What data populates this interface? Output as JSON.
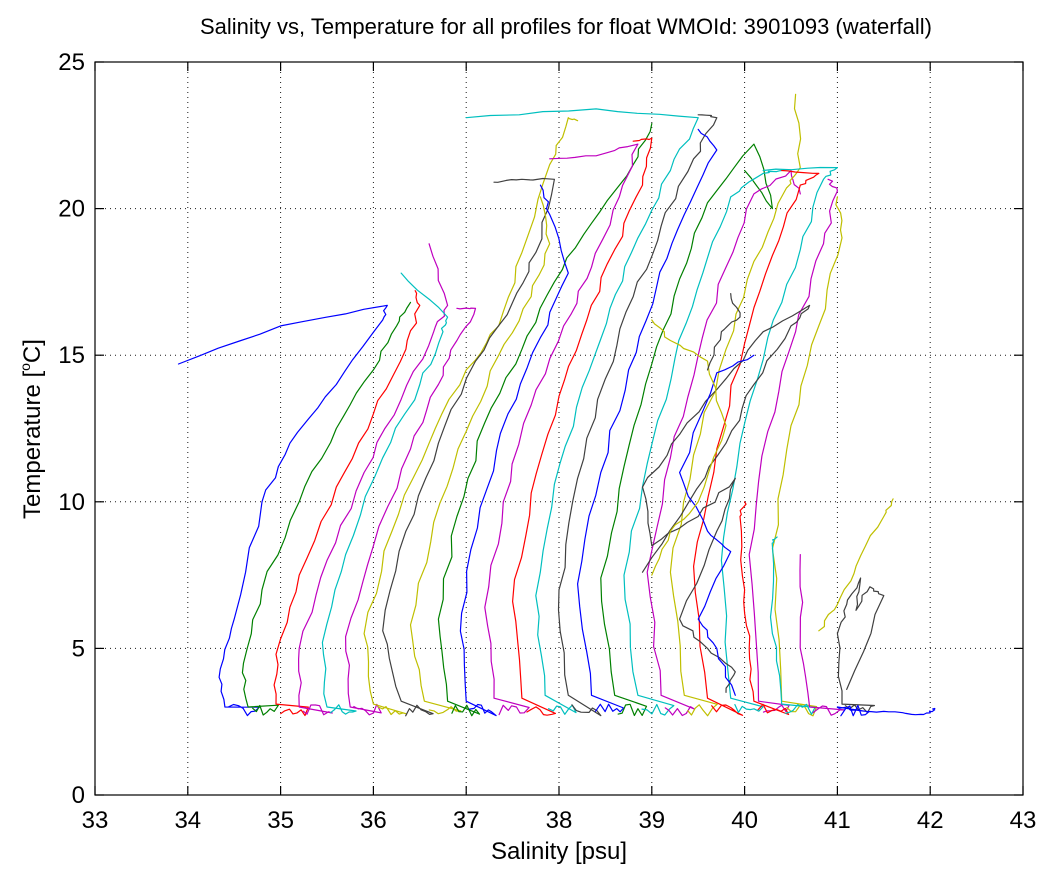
{
  "chart_data": {
    "type": "line",
    "title": "Salinity vs, Temperature for all profiles for float WMOId: 3901093 (waterfall)",
    "xlabel": "Salinity [psu]",
    "ylabel_main": "Temperature [",
    "ylabel_sup": "o",
    "ylabel_end": "C]",
    "xlim": [
      33,
      43
    ],
    "ylim": [
      0,
      25
    ],
    "xticks": [
      33,
      34,
      35,
      36,
      37,
      38,
      39,
      40,
      41,
      42,
      43
    ],
    "yticks": [
      0,
      5,
      10,
      15,
      20,
      25
    ],
    "grid": true,
    "legend": "none",
    "colors": {
      "blue": "#0000ff",
      "green": "#008000",
      "red": "#ff0000",
      "cyan": "#00bfbf",
      "magenta": "#bf00bf",
      "yellow": "#bfbf00",
      "gray": "#404040"
    },
    "series": [
      {
        "color": "blue",
        "points": [
          [
            34.4,
            3.0
          ],
          [
            34.35,
            4.3
          ],
          [
            34.5,
            6.0
          ],
          [
            34.8,
            10.0
          ],
          [
            35.1,
            12.0
          ],
          [
            35.6,
            14.0
          ],
          [
            36.1,
            16.2
          ],
          [
            36.15,
            16.7
          ],
          [
            35.0,
            16.0
          ],
          [
            33.9,
            14.7
          ]
        ]
      },
      {
        "color": "green",
        "points": [
          [
            34.65,
            3.0
          ],
          [
            34.6,
            4.5
          ],
          [
            34.8,
            7.0
          ],
          [
            35.2,
            10.0
          ],
          [
            35.6,
            12.5
          ],
          [
            36.0,
            14.5
          ],
          [
            36.25,
            16.0
          ],
          [
            36.4,
            16.8
          ]
        ]
      },
      {
        "color": "red",
        "points": [
          [
            34.95,
            3.1
          ],
          [
            34.95,
            4.8
          ],
          [
            35.2,
            7.5
          ],
          [
            35.6,
            10.5
          ],
          [
            36.0,
            13.0
          ],
          [
            36.35,
            15.2
          ],
          [
            36.5,
            16.7
          ],
          [
            36.45,
            17.2
          ]
        ]
      },
      {
        "color": "magenta",
        "points": [
          [
            35.2,
            3.0
          ],
          [
            35.2,
            5.0
          ],
          [
            35.5,
            8.0
          ],
          [
            35.9,
            11.0
          ],
          [
            36.3,
            13.5
          ],
          [
            36.65,
            15.8
          ],
          [
            36.8,
            16.7
          ],
          [
            36.6,
            18.8
          ]
        ]
      },
      {
        "color": "cyan",
        "points": [
          [
            35.5,
            3.0
          ],
          [
            35.45,
            5.2
          ],
          [
            35.7,
            8.2
          ],
          [
            36.1,
            11.5
          ],
          [
            36.5,
            14.0
          ],
          [
            36.75,
            15.8
          ],
          [
            36.8,
            16.3
          ],
          [
            36.3,
            17.8
          ]
        ]
      },
      {
        "color": "magenta",
        "points": [
          [
            35.75,
            3.0
          ],
          [
            35.7,
            5.4
          ],
          [
            36.0,
            8.5
          ],
          [
            36.4,
            11.8
          ],
          [
            36.7,
            14.0
          ],
          [
            36.9,
            15.5
          ],
          [
            37.1,
            16.6
          ],
          [
            36.9,
            16.6
          ]
        ]
      },
      {
        "color": "yellow",
        "points": [
          [
            36.0,
            3.1
          ],
          [
            35.9,
            5.5
          ],
          [
            36.2,
            9.0
          ],
          [
            36.6,
            12.0
          ],
          [
            37.0,
            14.5
          ],
          [
            37.35,
            16.0
          ],
          [
            37.6,
            18.5
          ],
          [
            37.9,
            21.5
          ],
          [
            38.1,
            23.1
          ],
          [
            38.2,
            23.0
          ]
        ]
      },
      {
        "color": "gray",
        "points": [
          [
            36.3,
            3.2
          ],
          [
            36.1,
            5.6
          ],
          [
            36.35,
            9.0
          ],
          [
            36.7,
            12.0
          ],
          [
            37.1,
            14.8
          ],
          [
            37.5,
            16.8
          ],
          [
            37.75,
            18.5
          ],
          [
            37.95,
            21.0
          ],
          [
            37.6,
            21.0
          ],
          [
            37.3,
            20.9
          ]
        ]
      },
      {
        "color": "yellow",
        "points": [
          [
            36.55,
            3.2
          ],
          [
            36.4,
            5.8
          ],
          [
            36.65,
            9.3
          ],
          [
            37.0,
            12.4
          ],
          [
            37.35,
            15.0
          ],
          [
            37.7,
            17.0
          ],
          [
            37.9,
            18.8
          ],
          [
            37.8,
            20.4
          ]
        ]
      },
      {
        "color": "green",
        "points": [
          [
            36.8,
            3.2
          ],
          [
            36.7,
            6.0
          ],
          [
            36.9,
            9.5
          ],
          [
            37.2,
            12.7
          ],
          [
            37.6,
            15.2
          ],
          [
            37.95,
            17.5
          ],
          [
            38.35,
            19.5
          ],
          [
            38.8,
            21.5
          ],
          [
            39.0,
            22.9
          ]
        ]
      },
      {
        "color": "blue",
        "points": [
          [
            37.0,
            3.2
          ],
          [
            36.95,
            6.2
          ],
          [
            37.15,
            9.8
          ],
          [
            37.45,
            13.0
          ],
          [
            37.8,
            15.6
          ],
          [
            38.1,
            17.8
          ],
          [
            37.9,
            19.8
          ],
          [
            37.8,
            20.8
          ]
        ]
      },
      {
        "color": "magenta",
        "points": [
          [
            37.3,
            3.3
          ],
          [
            37.2,
            6.4
          ],
          [
            37.4,
            10.0
          ],
          [
            37.7,
            13.3
          ],
          [
            38.05,
            16.0
          ],
          [
            38.35,
            18.0
          ],
          [
            38.65,
            20.4
          ],
          [
            38.85,
            22.2
          ],
          [
            38.4,
            21.8
          ],
          [
            37.9,
            21.7
          ]
        ]
      },
      {
        "color": "red",
        "points": [
          [
            37.6,
            3.3
          ],
          [
            37.5,
            6.6
          ],
          [
            37.7,
            10.3
          ],
          [
            38.0,
            13.6
          ],
          [
            38.3,
            16.2
          ],
          [
            38.6,
            18.6
          ],
          [
            38.9,
            20.8
          ],
          [
            39.0,
            22.4
          ],
          [
            38.8,
            22.3
          ]
        ]
      },
      {
        "color": "cyan",
        "points": [
          [
            37.85,
            3.4
          ],
          [
            37.75,
            6.8
          ],
          [
            37.95,
            10.6
          ],
          [
            38.25,
            13.9
          ],
          [
            38.55,
            16.6
          ],
          [
            38.85,
            19.0
          ],
          [
            39.2,
            21.3
          ],
          [
            39.5,
            23.1
          ],
          [
            38.4,
            23.4
          ],
          [
            37.0,
            23.1
          ]
        ]
      },
      {
        "color": "gray",
        "points": [
          [
            38.1,
            3.4
          ],
          [
            38.0,
            7.0
          ],
          [
            38.2,
            10.8
          ],
          [
            38.5,
            14.2
          ],
          [
            38.8,
            17.0
          ],
          [
            39.1,
            19.4
          ],
          [
            39.45,
            21.7
          ],
          [
            39.7,
            23.1
          ],
          [
            39.5,
            23.2
          ]
        ]
      },
      {
        "color": "blue",
        "points": [
          [
            38.35,
            3.4
          ],
          [
            38.2,
            7.2
          ],
          [
            38.45,
            11.0
          ],
          [
            38.75,
            14.5
          ],
          [
            39.05,
            17.3
          ],
          [
            39.35,
            19.8
          ],
          [
            39.7,
            22.0
          ],
          [
            39.5,
            22.7
          ]
        ]
      },
      {
        "color": "green",
        "points": [
          [
            38.6,
            3.4
          ],
          [
            38.45,
            7.4
          ],
          [
            38.7,
            11.2
          ],
          [
            39.0,
            14.7
          ],
          [
            39.3,
            17.6
          ],
          [
            39.6,
            20.2
          ],
          [
            40.1,
            22.2
          ],
          [
            40.3,
            20.0
          ],
          [
            40.0,
            21.3
          ]
        ]
      },
      {
        "color": "cyan",
        "points": [
          [
            38.85,
            3.4
          ],
          [
            38.7,
            7.5
          ],
          [
            38.95,
            11.3
          ],
          [
            39.25,
            14.9
          ],
          [
            39.55,
            17.8
          ],
          [
            39.85,
            20.4
          ],
          [
            40.2,
            21.2
          ],
          [
            40.4,
            21.3
          ]
        ]
      },
      {
        "color": "magenta",
        "points": [
          [
            39.1,
            3.4
          ],
          [
            38.95,
            7.6
          ],
          [
            39.2,
            11.5
          ],
          [
            39.5,
            15.0
          ],
          [
            39.8,
            18.0
          ],
          [
            40.1,
            20.5
          ],
          [
            40.5,
            21.3
          ],
          [
            40.6,
            20.5
          ]
        ]
      },
      {
        "color": "yellow",
        "points": [
          [
            39.35,
            3.4
          ],
          [
            39.2,
            7.6
          ],
          [
            39.45,
            11.6
          ],
          [
            39.8,
            15.2
          ],
          [
            40.1,
            18.2
          ],
          [
            40.45,
            20.7
          ],
          [
            40.6,
            21.4
          ],
          [
            40.55,
            23.9
          ]
        ]
      },
      {
        "color": "red",
        "points": [
          [
            39.6,
            3.3
          ],
          [
            39.45,
            7.8
          ],
          [
            39.7,
            11.8
          ],
          [
            40.0,
            15.4
          ],
          [
            40.3,
            18.4
          ],
          [
            40.6,
            20.8
          ],
          [
            40.8,
            21.2
          ],
          [
            40.4,
            21.3
          ]
        ]
      },
      {
        "color": "cyan",
        "points": [
          [
            39.85,
            3.3
          ],
          [
            39.75,
            8.0
          ],
          [
            39.95,
            12.0
          ],
          [
            40.25,
            15.6
          ],
          [
            40.6,
            18.6
          ],
          [
            40.85,
            21.0
          ],
          [
            41.0,
            21.4
          ],
          [
            40.2,
            21.3
          ]
        ]
      },
      {
        "color": "magenta",
        "points": [
          [
            40.15,
            3.2
          ],
          [
            40.05,
            8.2
          ],
          [
            40.25,
            12.4
          ],
          [
            40.55,
            15.8
          ],
          [
            40.85,
            18.8
          ],
          [
            41.0,
            20.6
          ],
          [
            40.9,
            21.0
          ]
        ]
      },
      {
        "color": "yellow",
        "points": [
          [
            40.4,
            3.2
          ],
          [
            40.3,
            8.4
          ],
          [
            40.5,
            12.6
          ],
          [
            40.8,
            16.0
          ],
          [
            41.05,
            19.0
          ],
          [
            41.0,
            20.4
          ]
        ]
      },
      {
        "color": "gray",
        "points": [
          [
            38.9,
            7.6
          ],
          [
            39.4,
            10.0
          ],
          [
            39.8,
            12.0
          ],
          [
            40.1,
            14.0
          ],
          [
            40.5,
            16.0
          ],
          [
            40.7,
            16.7
          ],
          [
            40.2,
            15.8
          ],
          [
            39.8,
            14.2
          ],
          [
            39.3,
            12.3
          ],
          [
            38.9,
            10.5
          ],
          [
            39.0,
            8.5
          ],
          [
            39.5,
            9.5
          ],
          [
            39.9,
            10.8
          ],
          [
            39.7,
            9.0
          ],
          [
            39.3,
            6.0
          ],
          [
            39.6,
            5.0
          ],
          [
            39.9,
            4.2
          ],
          [
            39.8,
            3.5
          ]
        ]
      },
      {
        "color": "blue",
        "points": [
          [
            40.1,
            15.0
          ],
          [
            39.7,
            14.4
          ],
          [
            39.3,
            11.0
          ],
          [
            39.6,
            9.0
          ],
          [
            39.85,
            8.3
          ],
          [
            39.5,
            6.0
          ],
          [
            39.7,
            5.0
          ],
          [
            39.9,
            3.4
          ]
        ]
      },
      {
        "color": "yellow",
        "points": [
          [
            39.0,
            7.5
          ],
          [
            39.2,
            9.0
          ],
          [
            39.5,
            10.0
          ],
          [
            39.8,
            12.6
          ],
          [
            39.6,
            14.8
          ],
          [
            39.2,
            15.5
          ],
          [
            39.0,
            16.2
          ]
        ]
      },
      {
        "color": "gray",
        "points": [
          [
            39.85,
            17.1
          ],
          [
            39.95,
            16.3
          ],
          [
            39.75,
            15.8
          ],
          [
            39.6,
            14.5
          ]
        ]
      },
      {
        "color": "red",
        "points": [
          [
            40.1,
            3.2
          ],
          [
            40.05,
            5.0
          ],
          [
            40.0,
            7.0
          ],
          [
            39.95,
            9.5
          ],
          [
            40.0,
            10.0
          ]
        ]
      },
      {
        "color": "cyan",
        "points": [
          [
            40.4,
            3.1
          ],
          [
            40.3,
            5.5
          ],
          [
            40.3,
            8.5
          ],
          [
            40.35,
            8.8
          ]
        ]
      },
      {
        "color": "magenta",
        "points": [
          [
            40.7,
            3.0
          ],
          [
            40.6,
            5.5
          ],
          [
            40.6,
            8.2
          ]
        ]
      },
      {
        "color": "yellow",
        "points": [
          [
            40.8,
            5.6
          ],
          [
            41.0,
            6.5
          ],
          [
            41.2,
            7.8
          ],
          [
            41.5,
            9.5
          ],
          [
            41.6,
            10.1
          ]
        ]
      },
      {
        "color": "gray",
        "points": [
          [
            41.05,
            3.1
          ],
          [
            41.0,
            5.5
          ],
          [
            41.1,
            6.5
          ],
          [
            41.25,
            7.4
          ],
          [
            41.2,
            6.3
          ],
          [
            41.35,
            7.1
          ],
          [
            41.5,
            6.8
          ],
          [
            41.1,
            3.6
          ]
        ]
      },
      {
        "color": "blue",
        "points": [
          [
            41.0,
            3.0
          ],
          [
            41.2,
            2.9
          ],
          [
            41.5,
            2.85
          ],
          [
            41.8,
            2.75
          ],
          [
            42.0,
            2.8
          ],
          [
            42.05,
            2.95
          ]
        ]
      }
    ]
  }
}
